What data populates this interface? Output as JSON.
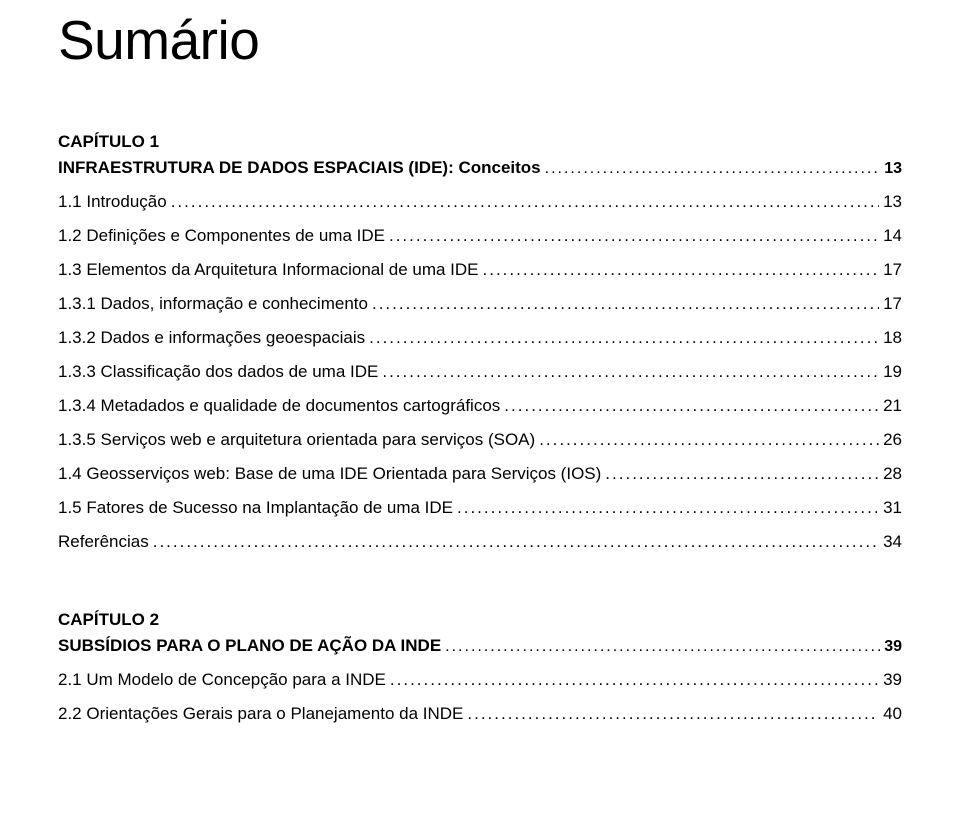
{
  "title": "Sumário",
  "chapter1": {
    "label": "CAPÍTULO 1",
    "heading": "INFRAESTRUTURA DE DADOS ESPACIAIS (IDE): Conceitos",
    "heading_page": "13",
    "entries": [
      {
        "label": "1.1 Introdução",
        "page": "13",
        "bold": false
      },
      {
        "label": "1.2 Definições e Componentes de uma IDE",
        "page": "14",
        "bold": false
      },
      {
        "label": "1.3 Elementos da Arquitetura Informacional de uma IDE",
        "page": "17",
        "bold": false
      },
      {
        "label": "1.3.1 Dados, informação e conhecimento",
        "page": "17",
        "bold": false
      },
      {
        "label": "1.3.2 Dados e informações geoespaciais",
        "page": "18",
        "bold": false
      },
      {
        "label": "1.3.3 Classificação dos dados de uma IDE",
        "page": "19",
        "bold": false
      },
      {
        "label": "1.3.4 Metadados e qualidade de documentos cartográficos",
        "page": "21",
        "bold": false
      },
      {
        "label": "1.3.5 Serviços web e arquitetura orientada para serviços (SOA)",
        "page": "26",
        "bold": false
      },
      {
        "label": "1.4 Geosserviços web: Base de uma IDE Orientada para Serviços (IOS)",
        "page": "28",
        "bold": false
      },
      {
        "label": "1.5 Fatores de Sucesso na Implantação de uma IDE",
        "page": "31",
        "bold": false
      },
      {
        "label": "Referências",
        "page": "34",
        "bold": false
      }
    ]
  },
  "chapter2": {
    "label": "CAPÍTULO 2",
    "heading": "SUBSÍDIOS PARA O PLANO DE AÇÃO DA INDE",
    "heading_page": "39",
    "entries": [
      {
        "label": "2.1 Um Modelo de Concepção para a INDE",
        "page": "39",
        "bold": false
      },
      {
        "label": "2.2 Orientações Gerais para o Planejamento da INDE",
        "page": "40",
        "bold": false
      }
    ]
  }
}
